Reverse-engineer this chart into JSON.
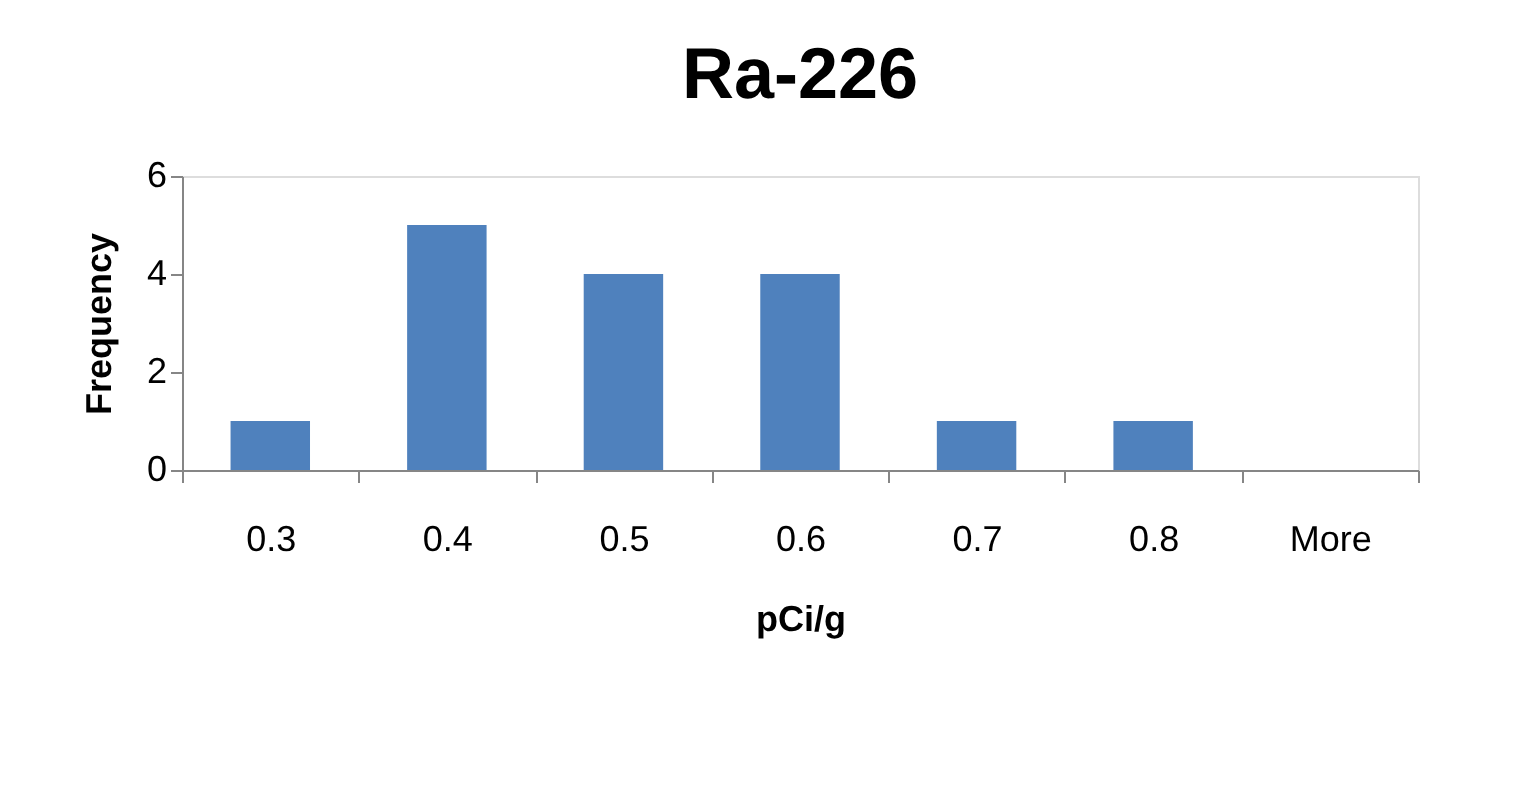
{
  "chart_data": {
    "type": "bar",
    "title": "Ra-226",
    "xlabel": "pCi/g",
    "ylabel": "Frequency",
    "categories": [
      "0.3",
      "0.4",
      "0.5",
      "0.6",
      "0.7",
      "0.8",
      "More"
    ],
    "values": [
      1,
      5,
      4,
      4,
      1,
      1,
      0
    ],
    "color": "#4f81bd",
    "ylim": [
      0,
      6
    ],
    "yticks": [
      0,
      2,
      4,
      6
    ],
    "grid": false
  }
}
